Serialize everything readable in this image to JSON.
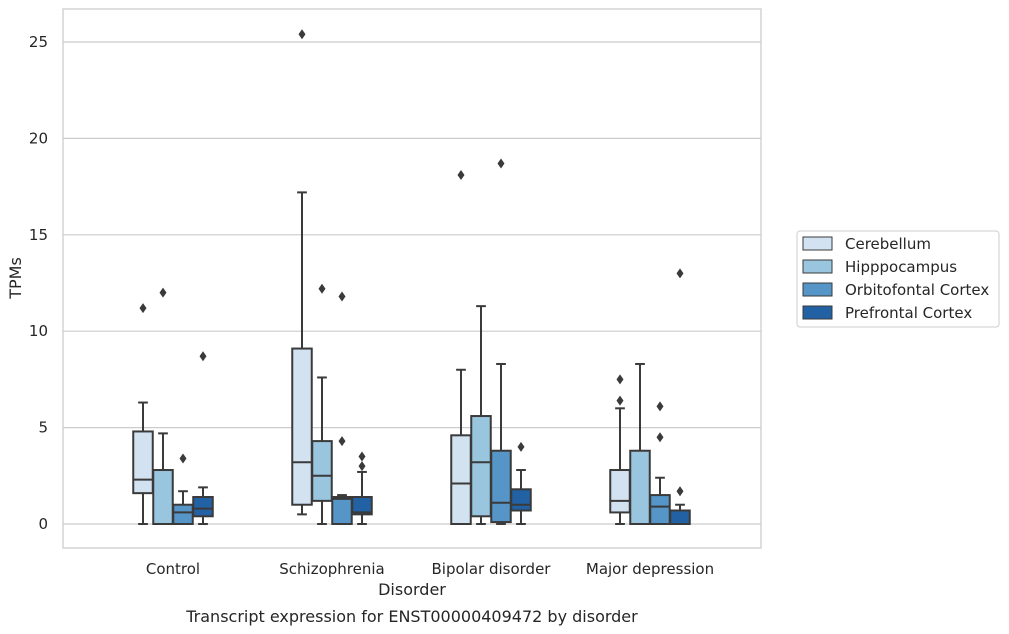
{
  "chart_data": {
    "type": "box",
    "xlabel": "Disorder",
    "ylabel": "TPMs",
    "caption": "Transcript expression for ENST00000409472 by disorder",
    "ylim": [
      -1.2,
      26.7
    ],
    "yticks": [
      0,
      5,
      10,
      15,
      20,
      25
    ],
    "grid": "horizontal",
    "legend_position": "right",
    "categories": [
      "Control",
      "Schizophrenia",
      "Bipolar disorder",
      "Major depression"
    ],
    "series": [
      {
        "name": "Cerebellum",
        "color": "#d3e2f1",
        "boxes": [
          {
            "min": 0,
            "q1": 1.6,
            "median": 2.3,
            "q3": 4.8,
            "max": 6.3,
            "outliers": [
              11.2
            ]
          },
          {
            "min": 0.5,
            "q1": 1.0,
            "median": 3.2,
            "q3": 9.1,
            "max": 17.2,
            "outliers": [
              25.4
            ]
          },
          {
            "min": 0,
            "q1": 0,
            "median": 2.1,
            "q3": 4.6,
            "max": 8.0,
            "outliers": [
              18.1
            ]
          },
          {
            "min": 0,
            "q1": 0.6,
            "median": 1.2,
            "q3": 2.8,
            "max": 6.0,
            "outliers": [
              6.4,
              7.5
            ]
          }
        ]
      },
      {
        "name": "Hipppocampus",
        "color": "#9ac5df",
        "boxes": [
          {
            "min": 0,
            "q1": 0,
            "median": 0,
            "q3": 2.8,
            "max": 4.7,
            "outliers": [
              12.0
            ]
          },
          {
            "min": 0,
            "q1": 1.2,
            "median": 2.5,
            "q3": 4.3,
            "max": 7.6,
            "outliers": [
              12.2
            ]
          },
          {
            "min": 0,
            "q1": 0.4,
            "median": 3.2,
            "q3": 5.6,
            "max": 11.3,
            "outliers": []
          },
          {
            "min": 0,
            "q1": 0,
            "median": 0,
            "q3": 3.8,
            "max": 8.3,
            "outliers": []
          }
        ]
      },
      {
        "name": "Orbitofontal Cortex",
        "color": "#5595c7",
        "boxes": [
          {
            "min": 0,
            "q1": 0,
            "median": 0.6,
            "q3": 1.0,
            "max": 1.7,
            "outliers": [
              3.4
            ]
          },
          {
            "min": 0,
            "q1": 0,
            "median": 1.3,
            "q3": 1.4,
            "max": 1.5,
            "outliers": [
              4.3,
              11.8
            ]
          },
          {
            "min": 0,
            "q1": 0.1,
            "median": 1.1,
            "q3": 3.8,
            "max": 8.3,
            "outliers": [
              18.7
            ]
          },
          {
            "min": 0,
            "q1": 0,
            "median": 0.9,
            "q3": 1.5,
            "max": 2.4,
            "outliers": [
              4.5,
              6.1
            ]
          }
        ]
      },
      {
        "name": "Prefrontal Cortex",
        "color": "#2262a4",
        "boxes": [
          {
            "min": 0,
            "q1": 0.4,
            "median": 0.8,
            "q3": 1.4,
            "max": 1.9,
            "outliers": [
              8.7
            ]
          },
          {
            "min": 0,
            "q1": 0.5,
            "median": 0.6,
            "q3": 1.4,
            "max": 2.7,
            "outliers": [
              3.0,
              3.5
            ]
          },
          {
            "min": 0,
            "q1": 0.7,
            "median": 1.0,
            "q3": 1.8,
            "max": 2.8,
            "outliers": [
              4.0
            ]
          },
          {
            "min": 0,
            "q1": 0,
            "median": 0,
            "q3": 0.7,
            "max": 1.0,
            "outliers": [
              1.7,
              13.0
            ]
          }
        ]
      }
    ]
  }
}
